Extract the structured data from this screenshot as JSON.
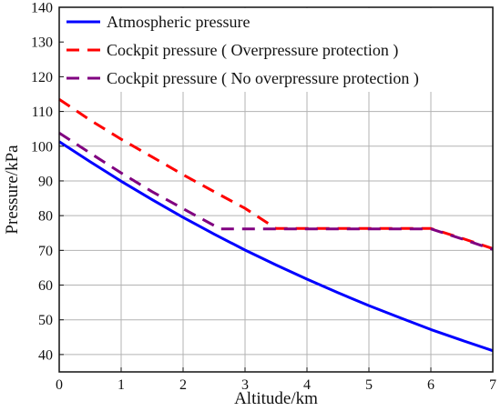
{
  "chart_data": {
    "type": "line",
    "title": "",
    "xlabel": "Altitude/km",
    "ylabel": "Pressure/kPa",
    "xlim": [
      0,
      7
    ],
    "ylim": [
      35,
      140
    ],
    "x_ticks": [
      0,
      1,
      2,
      3,
      4,
      5,
      6,
      7
    ],
    "y_ticks": [
      40,
      50,
      60,
      70,
      80,
      90,
      100,
      110,
      120,
      130,
      140
    ],
    "grid": true,
    "legend_position": "top-left",
    "series": [
      {
        "name": "Atmospheric pressure",
        "color": "#0000ff",
        "line_style": "solid",
        "x": [
          0,
          0.5,
          1,
          1.5,
          2,
          2.5,
          3,
          3.5,
          4,
          4.5,
          5,
          5.5,
          6,
          6.5,
          7
        ],
        "values": [
          101.3,
          95.5,
          89.9,
          84.6,
          79.5,
          74.7,
          70.1,
          65.8,
          61.7,
          57.8,
          54.1,
          50.6,
          47.2,
          44.1,
          41.1
        ]
      },
      {
        "name": "Cockpit pressure ( Overpressure protection )",
        "color": "#ff0000",
        "line_style": "dashed",
        "x": [
          0,
          0.5,
          1,
          1.5,
          2,
          2.5,
          3,
          3.5,
          4,
          5,
          6,
          6.5,
          7
        ],
        "values": [
          113.5,
          107.5,
          102,
          96.9,
          91.8,
          86.9,
          82.1,
          76.3,
          76.3,
          76.3,
          76.3,
          73.5,
          70.5
        ]
      },
      {
        "name": "Cockpit pressure ( No overpressure protection )",
        "color": "#800080",
        "line_style": "dashed",
        "x": [
          0,
          0.5,
          1,
          1.5,
          2,
          2.6,
          3,
          4,
          5,
          6,
          6.5,
          7
        ],
        "values": [
          103.8,
          98,
          92.3,
          86.9,
          82,
          76.2,
          76.2,
          76.2,
          76.2,
          76.2,
          73.3,
          70.3
        ]
      }
    ]
  }
}
